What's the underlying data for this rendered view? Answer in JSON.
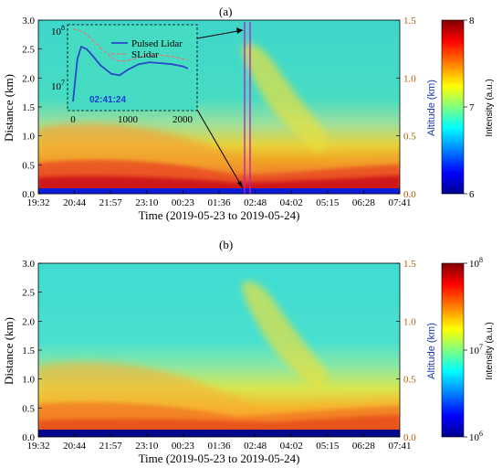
{
  "chart_data": [
    {
      "panel": "(a)",
      "type": "heatmap",
      "xlabel": "Time (2019-05-23 to 2019-05-24)",
      "ylabel": "Distance (km)",
      "y2label": "Altitude (km)",
      "colorbar_label": "Intensity (a.u.)",
      "x_ticks": [
        "19:32",
        "20:44",
        "21:57",
        "23:10",
        "00:23",
        "01:36",
        "02:48",
        "04:02",
        "05:15",
        "06:28",
        "07:41"
      ],
      "y_ticks": [
        "0.0",
        "0.5",
        "1.0",
        "1.5",
        "2.0",
        "2.5",
        "3.0"
      ],
      "ylim": [
        0,
        3.0
      ],
      "y2_ticks": [
        "0.0",
        "0.5",
        "1.0",
        "1.5"
      ],
      "y2lim": [
        0,
        1.5
      ],
      "colorbar_ticks": [
        "6",
        "7",
        "8"
      ],
      "colorbar_range": [
        6,
        8
      ],
      "colorbar_scale": "linear",
      "marker_time": "02:41:24",
      "inset": {
        "type": "line",
        "x_ticks": [
          "0",
          "1000",
          "2000"
        ],
        "xlim": [
          0,
          2200
        ],
        "y_ticks_base": "10",
        "y_ticks_exp": [
          "8",
          "7"
        ],
        "yscale": "log",
        "label": "02:41:24",
        "series": [
          {
            "name": "Pulsed Lidar",
            "style": "solid",
            "color": "#2a48c8",
            "x": [
              0,
              80,
              150,
              250,
              350,
              500,
              700,
              850,
              1000,
              1200,
              1400,
              1600,
              1800,
              2000,
              2100
            ],
            "y": [
              5000000.0,
              30000000.0,
              50000000.0,
              45000000.0,
              35000000.0,
              23000000.0,
              16000000.0,
              15000000.0,
              19000000.0,
              24000000.0,
              26000000.0,
              25000000.0,
              24000000.0,
              22000000.0,
              20000000.0
            ]
          },
          {
            "name": "SLidar",
            "style": "dashed",
            "color": "#e07878",
            "x": [
              0,
              100,
              200,
              300,
              400,
              500,
              600,
              700,
              800,
              900,
              1000,
              1200,
              1400,
              1600,
              1800,
              2000,
              2100
            ],
            "y": [
              105000000.0,
              100000000.0,
              90000000.0,
              75000000.0,
              60000000.0,
              48000000.0,
              39000000.0,
              32000000.0,
              28000000.0,
              27000000.0,
              28000000.0,
              32000000.0,
              35000000.0,
              35000000.0,
              33000000.0,
              30000000.0,
              29000000.0
            ]
          }
        ]
      }
    },
    {
      "panel": "(b)",
      "type": "heatmap",
      "xlabel": "Time (2019-05-23 to 2019-05-24)",
      "ylabel": "Distance (km)",
      "y2label": "Altitude (km)",
      "colorbar_label": "Intensity (a.u.)",
      "x_ticks": [
        "19:32",
        "20:44",
        "21:57",
        "23:10",
        "00:23",
        "01:36",
        "02:48",
        "04:02",
        "05:15",
        "06:28",
        "07:41"
      ],
      "y_ticks": [
        "0.0",
        "0.5",
        "1.0",
        "1.5",
        "2.0",
        "2.5",
        "3.0"
      ],
      "ylim": [
        0,
        3.0
      ],
      "y2_ticks": [
        "0.0",
        "0.5",
        "1.0",
        "1.5"
      ],
      "y2lim": [
        0,
        1.5
      ],
      "colorbar_ticks_base": "10",
      "colorbar_ticks_exp": [
        "6",
        "7",
        "8"
      ],
      "colorbar_range": [
        1000000.0,
        100000000.0
      ],
      "colorbar_scale": "log"
    }
  ]
}
